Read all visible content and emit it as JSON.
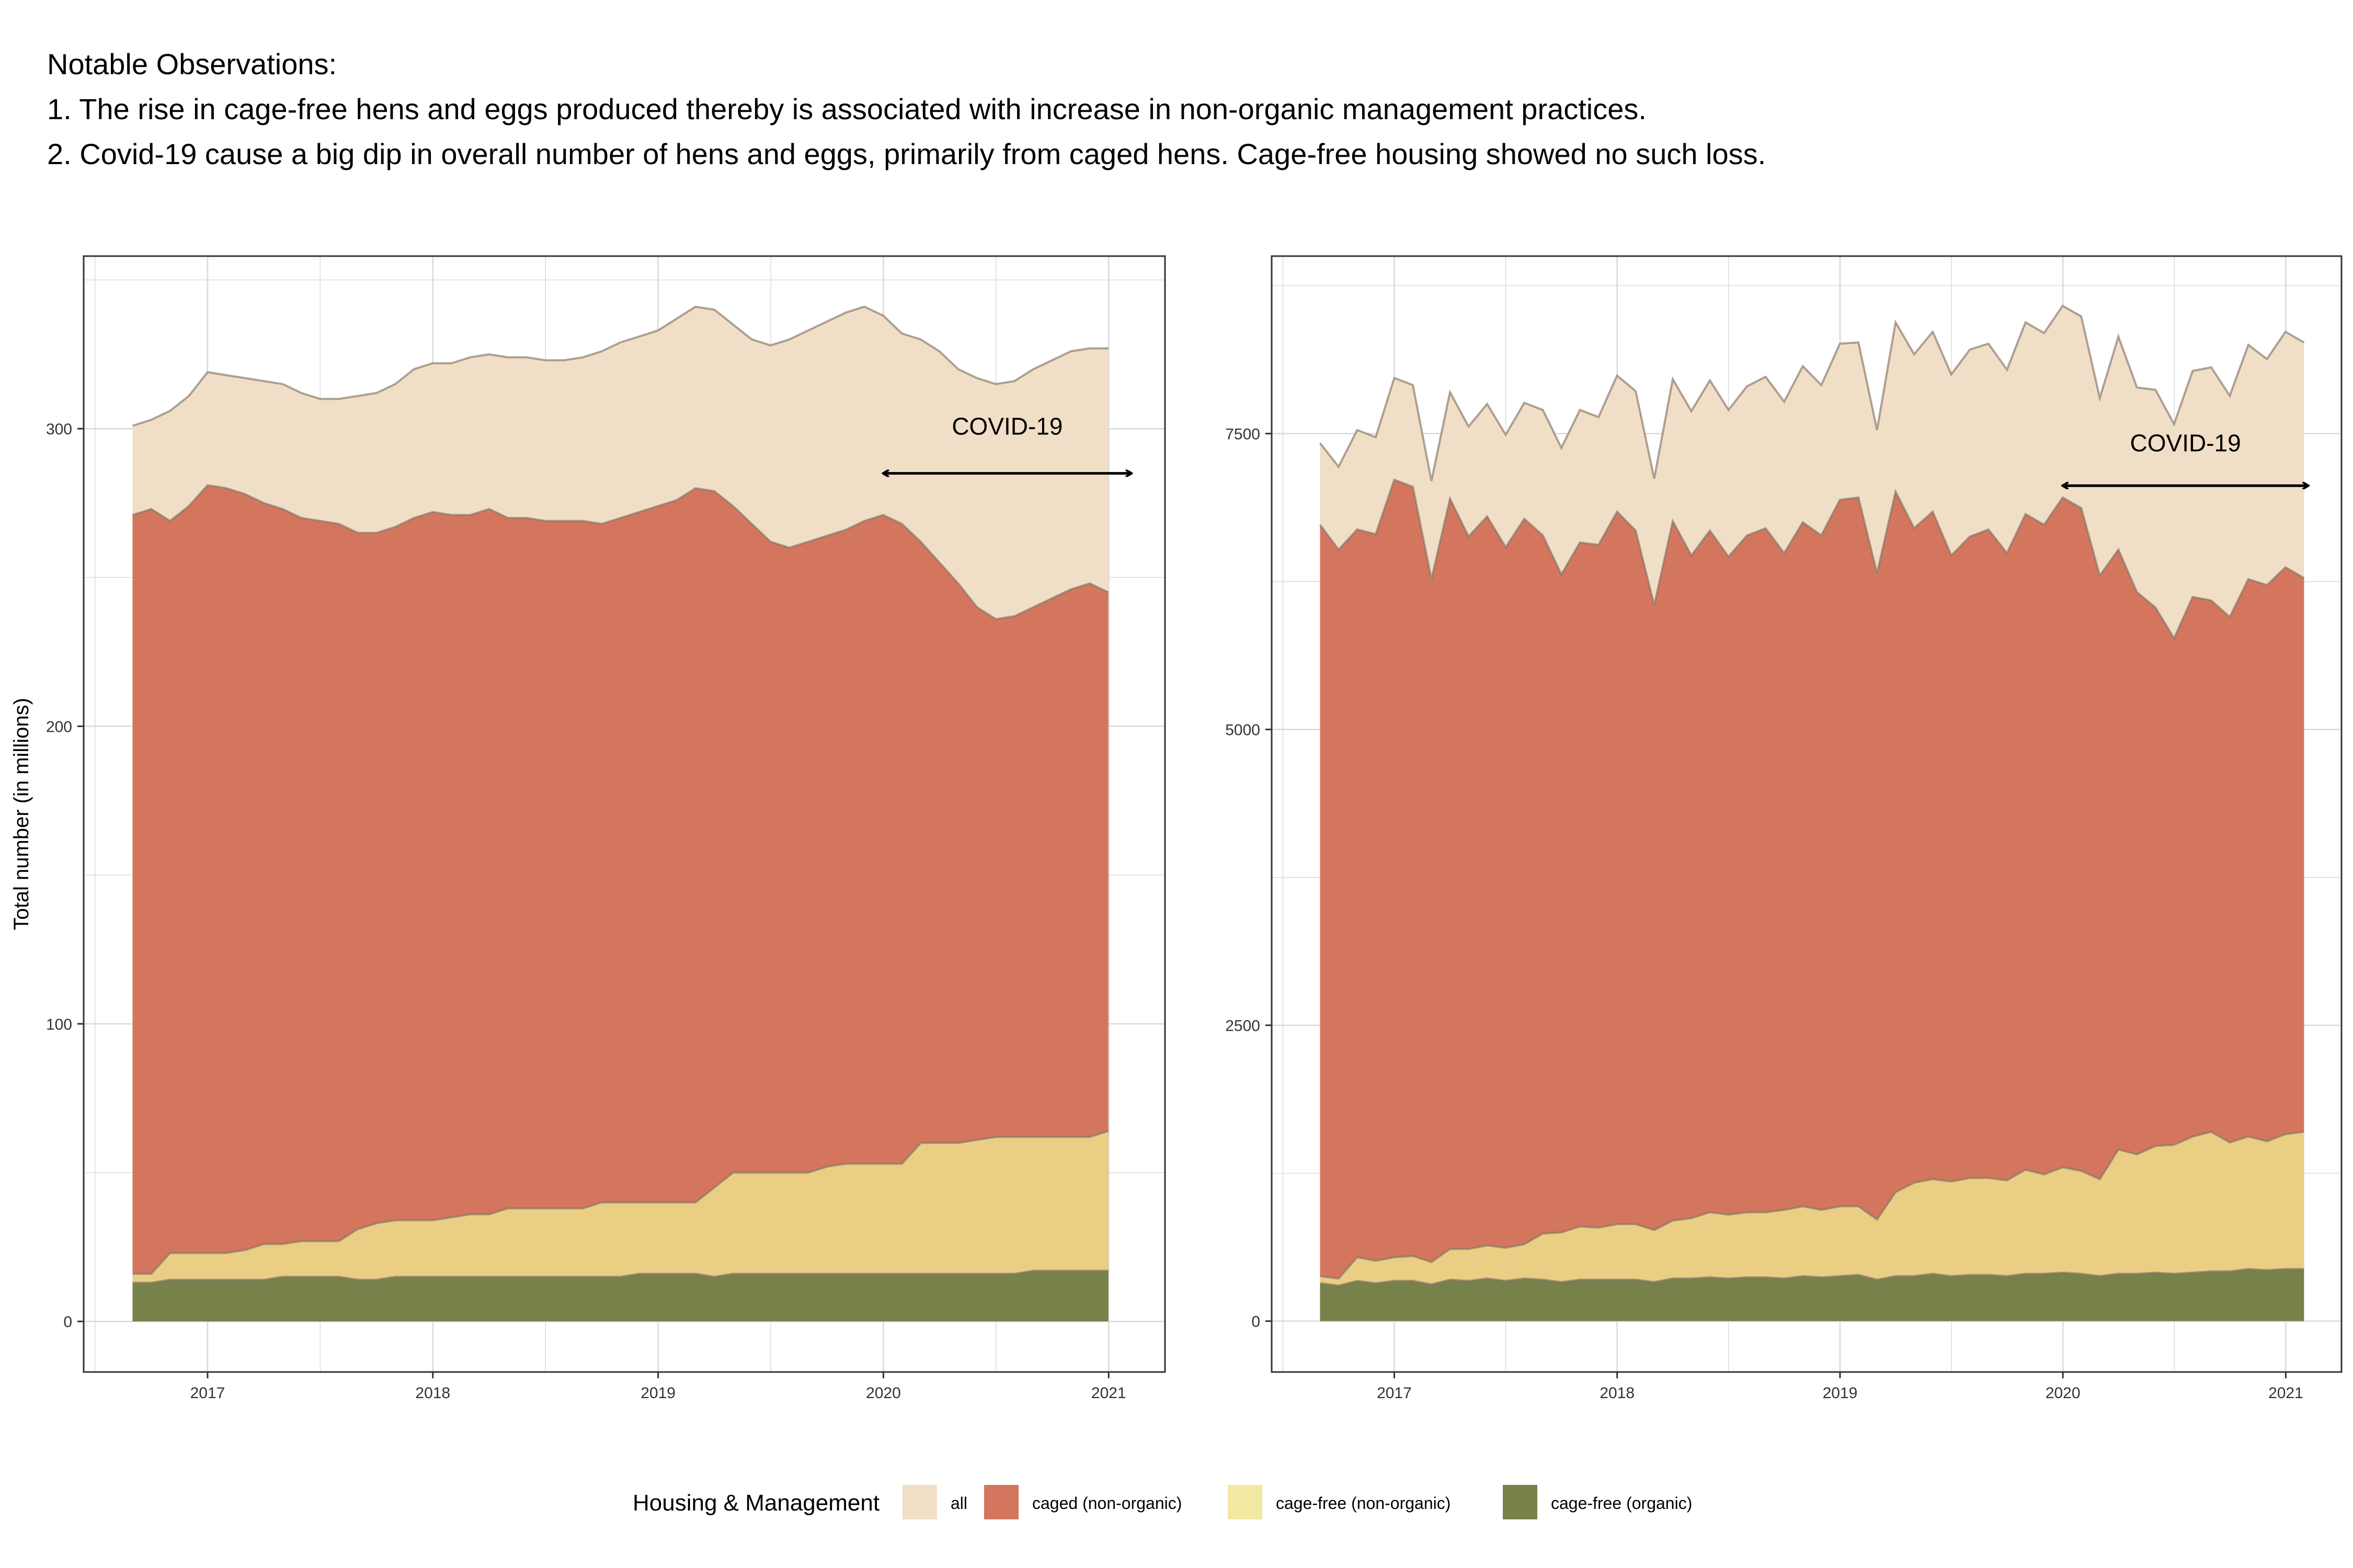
{
  "notes": {
    "heading": "Notable Observations:",
    "line1": "1. The rise in cage-free hens and eggs produced thereby is associated with increase in non-organic management practices.",
    "line2": "2. Covid-19 cause a big dip in overall number of hens and eggs, primarily from caged hens. Cage-free housing showed no such loss."
  },
  "legend": {
    "title": "Housing & Management",
    "items": [
      {
        "label": "all",
        "color": "#F1DEC6"
      },
      {
        "label": "caged (non-organic)",
        "color": "#D4765E"
      },
      {
        "label": "cage-free (non-organic)",
        "color": "#F3E8A2"
      },
      {
        "label": "cage-free (organic)",
        "color": "#77814A"
      }
    ]
  },
  "colors": {
    "all": "#F1DEC6",
    "caged": "#D4765E",
    "cagefree_nonorganic": "#E9CE84",
    "cagefree_organic": "#77814A",
    "outline": "#857565",
    "grid": "#D9D9D9"
  },
  "chart_data": [
    {
      "type": "area",
      "ylabel": "Total number (in millions)",
      "xlabel": "",
      "x_ticks": [
        "2017",
        "2018",
        "2019",
        "2020",
        "2021"
      ],
      "y_ticks": [
        "0",
        "100",
        "200",
        "300"
      ],
      "xlim": [
        2016.45,
        2021.25
      ],
      "ylim": [
        -17,
        358
      ],
      "annotation": {
        "text": "COVID-19",
        "arrow_from": 2020.0,
        "arrow_to": 2021.1,
        "y": 285,
        "text_y": 298
      },
      "x_start": 2016.667,
      "x_step": 0.0833,
      "all": [
        301,
        303,
        306,
        311,
        319,
        318,
        317,
        316,
        315,
        312,
        310,
        310,
        311,
        312,
        315,
        320,
        322,
        322,
        324,
        325,
        324,
        324,
        323,
        323,
        324,
        326,
        329,
        331,
        333,
        337,
        341,
        340,
        335,
        330,
        328,
        330,
        333,
        336,
        339,
        341,
        338,
        332,
        330,
        326,
        320,
        317,
        315,
        316,
        320,
        323,
        326,
        327,
        327
      ],
      "caged": [
        271,
        273,
        269,
        274,
        281,
        280,
        278,
        275,
        273,
        270,
        269,
        268,
        265,
        265,
        267,
        270,
        272,
        271,
        271,
        273,
        270,
        270,
        269,
        269,
        269,
        268,
        270,
        272,
        274,
        276,
        280,
        279,
        274,
        268,
        262,
        260,
        262,
        264,
        266,
        269,
        271,
        268,
        262,
        255,
        248,
        240,
        236,
        237,
        240,
        243,
        246,
        248,
        245
      ],
      "cagefree_nonorganic": [
        16,
        16,
        23,
        23,
        23,
        23,
        24,
        26,
        26,
        27,
        27,
        27,
        31,
        33,
        34,
        34,
        34,
        35,
        36,
        36,
        38,
        38,
        38,
        38,
        38,
        40,
        40,
        40,
        40,
        40,
        40,
        45,
        50,
        50,
        50,
        50,
        50,
        52,
        53,
        53,
        53,
        53,
        60,
        60,
        60,
        61,
        62,
        62,
        62,
        62,
        62,
        62,
        64
      ],
      "cagefree_organic": [
        13,
        13,
        14,
        14,
        14,
        14,
        14,
        14,
        15,
        15,
        15,
        15,
        14,
        14,
        15,
        15,
        15,
        15,
        15,
        15,
        15,
        15,
        15,
        15,
        15,
        15,
        15,
        16,
        16,
        16,
        16,
        15,
        16,
        16,
        16,
        16,
        16,
        16,
        16,
        16,
        16,
        16,
        16,
        16,
        16,
        16,
        16,
        16,
        17,
        17,
        17,
        17,
        17
      ]
    },
    {
      "type": "area",
      "ylabel": "",
      "xlabel": "",
      "x_ticks": [
        "2017",
        "2018",
        "2019",
        "2020",
        "2021"
      ],
      "y_ticks": [
        "0",
        "2500",
        "5000",
        "7500"
      ],
      "xlim": [
        2016.45,
        2021.25
      ],
      "ylim": [
        -430,
        9000
      ],
      "annotation": {
        "text": "COVID-19",
        "arrow_from": 2020.0,
        "arrow_to": 2021.1,
        "y": 7060,
        "text_y": 7350
      },
      "x_start": 2016.667,
      "x_step": 0.0833,
      "all": [
        7420,
        7220,
        7530,
        7470,
        7970,
        7910,
        7100,
        7850,
        7560,
        7750,
        7490,
        7760,
        7700,
        7380,
        7700,
        7640,
        7990,
        7860,
        7120,
        7960,
        7690,
        7950,
        7700,
        7900,
        7980,
        7770,
        8070,
        7910,
        8260,
        8270,
        7530,
        8440,
        8170,
        8360,
        8000,
        8210,
        8260,
        8040,
        8440,
        8350,
        8580,
        8490,
        7800,
        8320,
        7890,
        7870,
        7580,
        8030,
        8060,
        7820,
        8250,
        8130,
        8360,
        8270
      ],
      "caged": [
        6730,
        6520,
        6690,
        6650,
        7110,
        7050,
        6270,
        6950,
        6630,
        6800,
        6540,
        6780,
        6640,
        6310,
        6580,
        6560,
        6840,
        6680,
        6050,
        6760,
        6470,
        6680,
        6460,
        6640,
        6700,
        6490,
        6750,
        6640,
        6940,
        6960,
        6320,
        7010,
        6700,
        6840,
        6470,
        6630,
        6690,
        6490,
        6820,
        6730,
        6960,
        6870,
        6300,
        6520,
        6160,
        6030,
        5770,
        6120,
        6090,
        5950,
        6270,
        6220,
        6370,
        6280
      ],
      "cagefree_nonorganic": [
        380,
        360,
        540,
        510,
        540,
        550,
        500,
        610,
        610,
        640,
        620,
        650,
        740,
        750,
        800,
        790,
        820,
        820,
        770,
        850,
        870,
        920,
        900,
        920,
        920,
        940,
        970,
        940,
        970,
        970,
        860,
        1090,
        1170,
        1200,
        1180,
        1210,
        1210,
        1190,
        1280,
        1240,
        1300,
        1270,
        1200,
        1450,
        1410,
        1480,
        1490,
        1560,
        1600,
        1510,
        1560,
        1520,
        1580,
        1600
      ],
      "cagefree_organic": [
        320,
        300,
        340,
        320,
        340,
        340,
        310,
        350,
        340,
        360,
        340,
        360,
        350,
        330,
        350,
        350,
        350,
        350,
        330,
        360,
        360,
        370,
        360,
        370,
        370,
        360,
        380,
        370,
        380,
        390,
        350,
        380,
        380,
        400,
        380,
        390,
        390,
        380,
        400,
        400,
        410,
        400,
        380,
        400,
        400,
        410,
        400,
        410,
        420,
        420,
        440,
        430,
        440,
        440
      ]
    }
  ]
}
